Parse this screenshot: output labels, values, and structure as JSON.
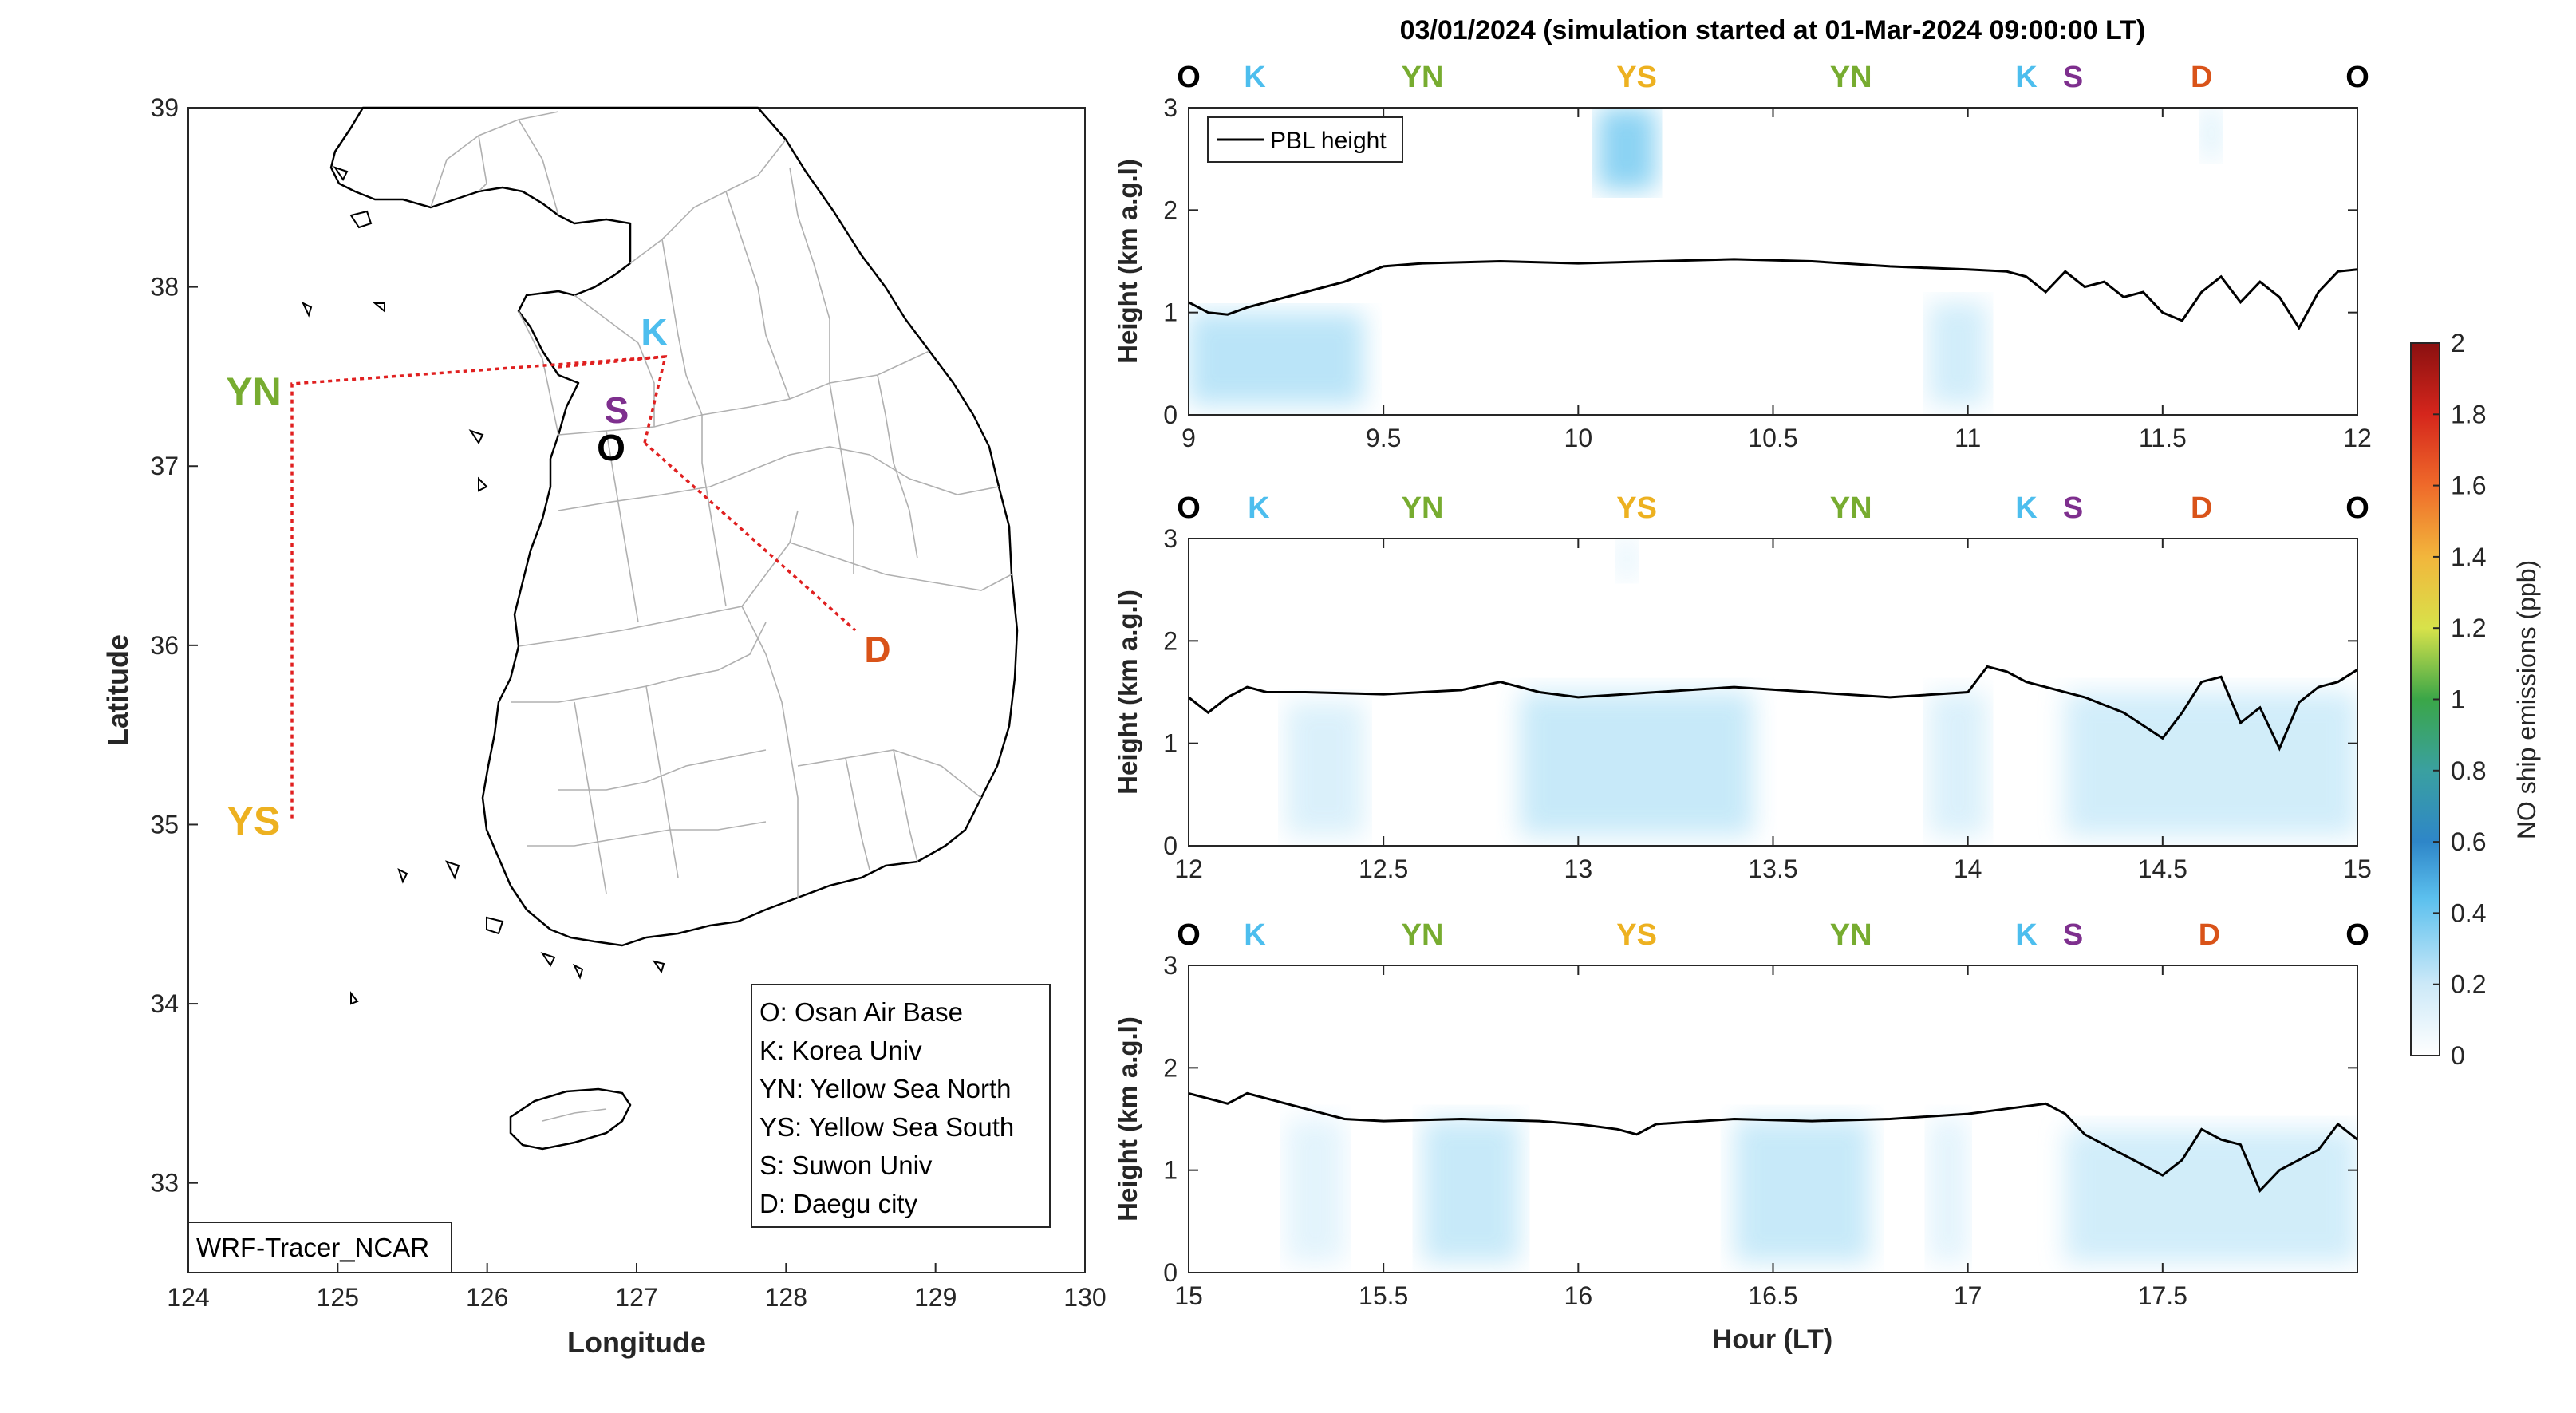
{
  "figure": {
    "title": "03/01/2024 (simulation started at 01-Mar-2024 09:00:00 LT)"
  },
  "colors": {
    "O": "#000000",
    "K": "#4DBEEE",
    "YN": "#77AC30",
    "YS": "#EDB120",
    "S": "#7E2F8E",
    "D": "#D95319",
    "route": "#E02020"
  },
  "map": {
    "xlabel": "Longitude",
    "ylabel": "Latitude",
    "xlim": [
      124,
      130
    ],
    "ylim": [
      32.5,
      39
    ],
    "xticks": [
      "124",
      "125",
      "126",
      "127",
      "128",
      "129",
      "130"
    ],
    "yticks": [
      "33",
      "34",
      "35",
      "36",
      "37",
      "38",
      "39"
    ],
    "model_label": "WRF-Tracer_NCAR",
    "sites": [
      {
        "code": "O",
        "lon": 126.85,
        "lat": 37.1
      },
      {
        "code": "K",
        "lon": 127.12,
        "lat": 37.72
      },
      {
        "code": "YN",
        "lon": 124.25,
        "lat": 37.45
      },
      {
        "code": "YS",
        "lon": 124.25,
        "lat": 35.05
      },
      {
        "code": "S",
        "lon": 126.95,
        "lat": 37.32
      },
      {
        "code": "D",
        "lon": 128.55,
        "lat": 35.87
      }
    ],
    "legend": [
      "O: Osan Air Base",
      "K: Korea Univ",
      "YN: Yellow Sea North",
      "YS: Yellow Sea South",
      "S: Suwon Univ",
      "D: Daegu city"
    ]
  },
  "chart_data": [
    {
      "type": "heatmap",
      "panel": 1,
      "x_range": [
        9,
        12
      ],
      "ylim": [
        0,
        3
      ],
      "xticks": [
        "9",
        "9.5",
        "10",
        "10.5",
        "11",
        "11.5",
        "12"
      ],
      "yticks": [
        "0",
        "1",
        "2",
        "3"
      ],
      "ylabel": "Height (km a.g.l)",
      "legend": "PBL height",
      "site_sequence": [
        {
          "code": "O",
          "hour": 9.0
        },
        {
          "code": "K",
          "hour": 9.17
        },
        {
          "code": "YN",
          "hour": 9.6
        },
        {
          "code": "YS",
          "hour": 10.15
        },
        {
          "code": "YN",
          "hour": 10.7
        },
        {
          "code": "K",
          "hour": 11.15
        },
        {
          "code": "S",
          "hour": 11.27
        },
        {
          "code": "D",
          "hour": 11.6
        },
        {
          "code": "O",
          "hour": 12.0
        }
      ],
      "pbl_height": {
        "x": [
          9.0,
          9.05,
          9.1,
          9.15,
          9.2,
          9.3,
          9.4,
          9.5,
          9.6,
          9.8,
          10.0,
          10.2,
          10.4,
          10.6,
          10.8,
          11.0,
          11.1,
          11.15,
          11.2,
          11.25,
          11.3,
          11.35,
          11.4,
          11.45,
          11.5,
          11.55,
          11.6,
          11.65,
          11.7,
          11.75,
          11.8,
          11.85,
          11.9,
          11.95,
          12.0
        ],
        "y": [
          1.1,
          1.0,
          0.98,
          1.05,
          1.1,
          1.2,
          1.3,
          1.45,
          1.48,
          1.5,
          1.48,
          1.5,
          1.52,
          1.5,
          1.45,
          1.42,
          1.4,
          1.35,
          1.2,
          1.4,
          1.25,
          1.3,
          1.15,
          1.2,
          1.0,
          0.92,
          1.2,
          1.35,
          1.1,
          1.3,
          1.15,
          0.85,
          1.2,
          1.4,
          1.42
        ]
      },
      "emission_patches": [
        {
          "x": [
            9.0,
            9.45
          ],
          "y": [
            0.1,
            1.0
          ],
          "value": 0.15
        },
        {
          "x": [
            10.05,
            10.2
          ],
          "y": [
            2.2,
            3.0
          ],
          "value": 0.25
        },
        {
          "x": [
            10.9,
            11.05
          ],
          "y": [
            0.1,
            1.1
          ],
          "value": 0.1
        },
        {
          "x": [
            11.6,
            11.65
          ],
          "y": [
            2.5,
            3.0
          ],
          "value": 0.08
        }
      ]
    },
    {
      "type": "heatmap",
      "panel": 2,
      "x_range": [
        12,
        15
      ],
      "ylim": [
        0,
        3
      ],
      "xticks": [
        "12",
        "12.5",
        "13",
        "13.5",
        "14",
        "14.5",
        "15"
      ],
      "yticks": [
        "0",
        "1",
        "2",
        "3"
      ],
      "ylabel": "Height (km a.g.l)",
      "site_sequence": [
        {
          "code": "O",
          "hour": 12.0
        },
        {
          "code": "K",
          "hour": 12.18
        },
        {
          "code": "YN",
          "hour": 12.6
        },
        {
          "code": "YS",
          "hour": 13.15
        },
        {
          "code": "YN",
          "hour": 13.7
        },
        {
          "code": "K",
          "hour": 14.15
        },
        {
          "code": "S",
          "hour": 14.27
        },
        {
          "code": "D",
          "hour": 14.6
        },
        {
          "code": "O",
          "hour": 15.0
        }
      ],
      "pbl_height": {
        "x": [
          12.0,
          12.05,
          12.1,
          12.15,
          12.2,
          12.3,
          12.5,
          12.7,
          12.8,
          12.9,
          13.0,
          13.2,
          13.4,
          13.6,
          13.8,
          14.0,
          14.05,
          14.1,
          14.15,
          14.2,
          14.3,
          14.4,
          14.5,
          14.55,
          14.6,
          14.65,
          14.7,
          14.75,
          14.8,
          14.85,
          14.9,
          14.95,
          15.0
        ],
        "y": [
          1.45,
          1.3,
          1.45,
          1.55,
          1.5,
          1.5,
          1.48,
          1.52,
          1.6,
          1.5,
          1.45,
          1.5,
          1.55,
          1.5,
          1.45,
          1.5,
          1.75,
          1.7,
          1.6,
          1.55,
          1.45,
          1.3,
          1.05,
          1.3,
          1.6,
          1.65,
          1.2,
          1.35,
          0.95,
          1.4,
          1.55,
          1.6,
          1.72
        ]
      },
      "emission_patches": [
        {
          "x": [
            12.25,
            12.45
          ],
          "y": [
            0.1,
            1.4
          ],
          "value": 0.08
        },
        {
          "x": [
            12.85,
            13.45
          ],
          "y": [
            0.1,
            1.5
          ],
          "value": 0.12
        },
        {
          "x": [
            13.1,
            13.15
          ],
          "y": [
            2.6,
            3.0
          ],
          "value": 0.06
        },
        {
          "x": [
            13.9,
            14.05
          ],
          "y": [
            0.1,
            1.5
          ],
          "value": 0.08
        },
        {
          "x": [
            14.25,
            15.0
          ],
          "y": [
            0.1,
            1.5
          ],
          "value": 0.1
        }
      ]
    },
    {
      "type": "heatmap",
      "panel": 3,
      "x_range": [
        15,
        18
      ],
      "ylim": [
        0,
        3
      ],
      "xticks": [
        "15",
        "15.5",
        "16",
        "16.5",
        "17",
        "17.5"
      ],
      "yticks": [
        "0",
        "1",
        "2",
        "3"
      ],
      "ylabel": "Height (km a.g.l)",
      "xlabel": "Hour (LT)",
      "site_sequence": [
        {
          "code": "O",
          "hour": 15.0
        },
        {
          "code": "K",
          "hour": 15.17
        },
        {
          "code": "YN",
          "hour": 15.6
        },
        {
          "code": "YS",
          "hour": 16.15
        },
        {
          "code": "YN",
          "hour": 16.7
        },
        {
          "code": "K",
          "hour": 17.15
        },
        {
          "code": "S",
          "hour": 17.27
        },
        {
          "code": "D",
          "hour": 17.62
        },
        {
          "code": "O",
          "hour": 18.0
        }
      ],
      "pbl_height": {
        "x": [
          15.0,
          15.05,
          15.1,
          15.15,
          15.2,
          15.3,
          15.4,
          15.5,
          15.7,
          15.9,
          16.0,
          16.1,
          16.15,
          16.2,
          16.4,
          16.6,
          16.8,
          17.0,
          17.1,
          17.2,
          17.25,
          17.3,
          17.4,
          17.5,
          17.55,
          17.6,
          17.65,
          17.7,
          17.75,
          17.8,
          17.85,
          17.9,
          17.95,
          18.0
        ],
        "y": [
          1.75,
          1.7,
          1.65,
          1.75,
          1.7,
          1.6,
          1.5,
          1.48,
          1.5,
          1.48,
          1.45,
          1.4,
          1.35,
          1.45,
          1.5,
          1.48,
          1.5,
          1.55,
          1.6,
          1.65,
          1.55,
          1.35,
          1.15,
          0.95,
          1.1,
          1.4,
          1.3,
          1.25,
          0.8,
          1.0,
          1.1,
          1.2,
          1.45,
          1.3
        ]
      },
      "emission_patches": [
        {
          "x": [
            15.25,
            15.4
          ],
          "y": [
            0.1,
            1.5
          ],
          "value": 0.06
        },
        {
          "x": [
            15.6,
            15.85
          ],
          "y": [
            0.1,
            1.5
          ],
          "value": 0.12
        },
        {
          "x": [
            16.4,
            16.75
          ],
          "y": [
            0.1,
            1.5
          ],
          "value": 0.12
        },
        {
          "x": [
            16.9,
            17.0
          ],
          "y": [
            0.1,
            1.5
          ],
          "value": 0.06
        },
        {
          "x": [
            17.25,
            18.0
          ],
          "y": [
            0.1,
            1.4
          ],
          "value": 0.1
        }
      ]
    }
  ],
  "colorbar": {
    "label": "NO ship emissions (ppb)",
    "range": [
      0,
      2
    ],
    "ticks": [
      "0",
      "0.2",
      "0.4",
      "0.6",
      "0.8",
      "1",
      "1.2",
      "1.4",
      "1.6",
      "1.8",
      "2"
    ]
  }
}
